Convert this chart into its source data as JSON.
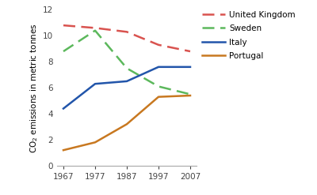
{
  "years": [
    1967,
    1977,
    1987,
    1997,
    2007
  ],
  "united_kingdom": [
    10.8,
    10.6,
    10.3,
    9.3,
    8.8
  ],
  "sweden": [
    8.8,
    10.4,
    7.5,
    6.1,
    5.5
  ],
  "italy": [
    4.4,
    6.3,
    6.5,
    7.6,
    7.6
  ],
  "portugal": [
    1.2,
    1.8,
    3.2,
    5.3,
    5.4
  ],
  "uk_color": "#d9534f",
  "sweden_color": "#5cb85c",
  "italy_color": "#2255aa",
  "portugal_color": "#c87820",
  "ylabel": "CO$_2$ emissions in metric tonnes",
  "ylim": [
    0,
    12
  ],
  "yticks": [
    0,
    2,
    4,
    6,
    8,
    10,
    12
  ],
  "xticks": [
    1967,
    1977,
    1987,
    1997,
    2007
  ],
  "legend_labels": [
    "United Kingdom",
    "Sweden",
    "Italy",
    "Portugal"
  ],
  "background_color": "#ffffff"
}
